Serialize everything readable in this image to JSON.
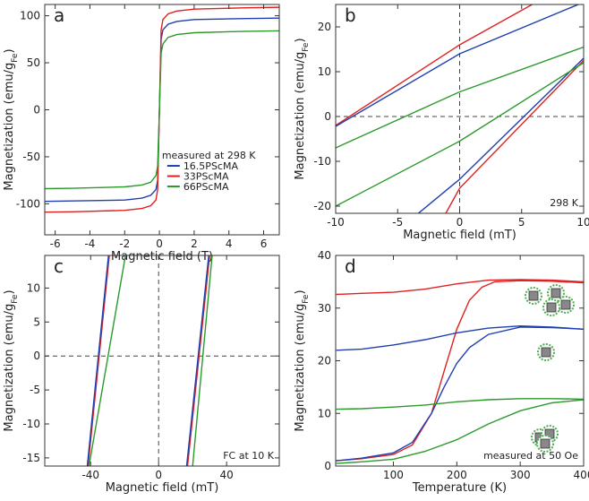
{
  "chart_data": [
    {
      "type": "line",
      "label": "a",
      "xlabel": "Magnetic field (T)",
      "ylabel": [
        "Magnetization (emu/g",
        "Fe",
        ")"
      ],
      "annotation": "measured at 298 K",
      "legend": true,
      "xlim": [
        -6.6,
        6.9
      ],
      "ylim": [
        -133,
        112
      ],
      "xticks": [
        -6,
        -4,
        -2,
        0,
        2,
        4,
        6
      ],
      "yticks": [
        -100,
        -50,
        0,
        50,
        100
      ],
      "zero_lines": false,
      "series": [
        {
          "name": "16.5PScMA",
          "color": "#1f3fb0",
          "x": [
            -7,
            -5,
            -2,
            -1,
            -0.5,
            -0.2,
            -0.1,
            0,
            0.1,
            0.2,
            0.5,
            1,
            2,
            5,
            7
          ],
          "values": [
            -97.5,
            -97,
            -96,
            -94,
            -91,
            -85,
            -75,
            0,
            75,
            85,
            91,
            94,
            96,
            97,
            97.5
          ]
        },
        {
          "name": "33PScMA",
          "color": "#e02020",
          "x": [
            -7,
            -5,
            -2,
            -1,
            -0.5,
            -0.2,
            -0.1,
            0,
            0.1,
            0.2,
            0.5,
            1,
            2,
            5,
            7
          ],
          "values": [
            -109,
            -108.5,
            -107,
            -105,
            -102,
            -96,
            -85,
            0,
            85,
            96,
            102,
            105,
            107,
            108.5,
            109
          ]
        },
        {
          "name": "66PScMA",
          "color": "#2a9a2a",
          "x": [
            -7,
            -5,
            -2,
            -1,
            -0.5,
            -0.2,
            -0.1,
            0,
            0.1,
            0.2,
            0.5,
            1,
            2,
            5,
            7
          ],
          "values": [
            -84,
            -83.5,
            -82,
            -80,
            -77,
            -70,
            -60,
            0,
            60,
            70,
            77,
            80,
            82,
            83.5,
            84
          ]
        }
      ]
    },
    {
      "type": "line",
      "label": "b",
      "xlabel": "Magnetic field (mT)",
      "ylabel": [
        "Magnetization (emu/g",
        "Fe",
        ")"
      ],
      "annotation": "298 K",
      "legend": false,
      "xlim": [
        -10,
        10
      ],
      "ylim": [
        -21.6,
        25
      ],
      "xticks": [
        -10,
        -5,
        0,
        5,
        10
      ],
      "yticks": [
        -20,
        -10,
        0,
        10,
        20
      ],
      "zero_lines": true,
      "series": [
        {
          "color": "#e02020",
          "x": [
            -10,
            0,
            6.5
          ],
          "values": [
            -2,
            16,
            26
          ]
        },
        {
          "color": "#e02020",
          "x": [
            -1.2,
            0,
            10
          ],
          "values": [
            -22,
            -16,
            12.5
          ]
        },
        {
          "color": "#1f3fb0",
          "x": [
            -10,
            0,
            10
          ],
          "values": [
            -2.2,
            14,
            25.5
          ]
        },
        {
          "color": "#1f3fb0",
          "x": [
            -3.5,
            0,
            10
          ],
          "values": [
            -22,
            -14,
            13
          ]
        },
        {
          "color": "#2a9a2a",
          "x": [
            -10,
            0,
            10
          ],
          "values": [
            -7,
            5.5,
            15.5
          ]
        },
        {
          "color": "#2a9a2a",
          "x": [
            -10,
            0,
            10
          ],
          "values": [
            -20,
            -5.5,
            12
          ]
        }
      ]
    },
    {
      "type": "line",
      "label": "c",
      "xlabel": "Magnetic field (mT)",
      "ylabel": [
        "Magnetization (emu/g",
        "Fe",
        ")"
      ],
      "annotation": "FC at 10 K",
      "legend": false,
      "xlim": [
        -67,
        71
      ],
      "ylim": [
        -16.2,
        14.8
      ],
      "xticks": [
        -40,
        0,
        40
      ],
      "yticks": [
        -15,
        -10,
        -5,
        0,
        5,
        10
      ],
      "zero_lines": true,
      "series": [
        {
          "color": "#e02020",
          "x": [
            -41.5,
            -29
          ],
          "values": [
            -16.2,
            14.8
          ]
        },
        {
          "color": "#1f3fb0",
          "x": [
            -42,
            -29.5
          ],
          "values": [
            -16.2,
            14.8
          ]
        },
        {
          "color": "#2a9a2a",
          "x": [
            -41,
            -19.5
          ],
          "values": [
            -16.2,
            14.8
          ]
        },
        {
          "color": "#e02020",
          "x": [
            17,
            30
          ],
          "values": [
            -16.2,
            14.8
          ]
        },
        {
          "color": "#1f3fb0",
          "x": [
            16.5,
            29.5
          ],
          "values": [
            -16.2,
            14.8
          ]
        },
        {
          "color": "#2a9a2a",
          "x": [
            20,
            31.5
          ],
          "values": [
            -16.2,
            14.8
          ]
        }
      ]
    },
    {
      "type": "line",
      "label": "d",
      "xlabel": "Temperature (K)",
      "ylabel": [
        "Magnetization (emu/g",
        "Fe",
        ")"
      ],
      "annotation": "measured at 50 Oe",
      "legend": false,
      "xlim": [
        9,
        400
      ],
      "ylim": [
        0,
        40
      ],
      "xticks": [
        100,
        200,
        300,
        400
      ],
      "yticks": [
        0,
        10,
        20,
        30,
        40
      ],
      "zero_lines": false,
      "series": [
        {
          "color": "#e02020",
          "x": [
            10,
            50,
            100,
            150,
            200,
            250,
            300,
            350,
            400
          ],
          "values": [
            32.6,
            32.8,
            33,
            33.6,
            34.6,
            35.3,
            35.4,
            35.3,
            35
          ]
        },
        {
          "color": "#e02020",
          "x": [
            10,
            50,
            100,
            130,
            160,
            180,
            200,
            220,
            240,
            260,
            300,
            350,
            400
          ],
          "values": [
            1,
            1.4,
            2.2,
            4,
            10,
            18,
            26,
            31.5,
            34,
            35,
            35.2,
            35.1,
            34.8
          ]
        },
        {
          "color": "#1f3fb0",
          "x": [
            10,
            50,
            100,
            150,
            200,
            250,
            300,
            350,
            400
          ],
          "values": [
            22,
            22.2,
            23,
            24,
            25.3,
            26.2,
            26.6,
            26.4,
            26
          ]
        },
        {
          "color": "#1f3fb0",
          "x": [
            10,
            50,
            100,
            130,
            160,
            180,
            200,
            220,
            250,
            300,
            350,
            400
          ],
          "values": [
            1,
            1.5,
            2.5,
            4.5,
            10,
            15,
            19.5,
            22.5,
            25,
            26.4,
            26.3,
            26
          ]
        },
        {
          "color": "#2a9a2a",
          "x": [
            10,
            50,
            100,
            150,
            200,
            250,
            300,
            350,
            400
          ],
          "values": [
            10.8,
            10.9,
            11.2,
            11.6,
            12.2,
            12.6,
            12.8,
            12.8,
            12.7
          ]
        },
        {
          "color": "#2a9a2a",
          "x": [
            10,
            50,
            100,
            150,
            200,
            250,
            300,
            350,
            400
          ],
          "values": [
            0.5,
            0.8,
            1.3,
            2.8,
            5,
            8,
            10.5,
            12,
            12.6
          ]
        }
      ]
    }
  ]
}
